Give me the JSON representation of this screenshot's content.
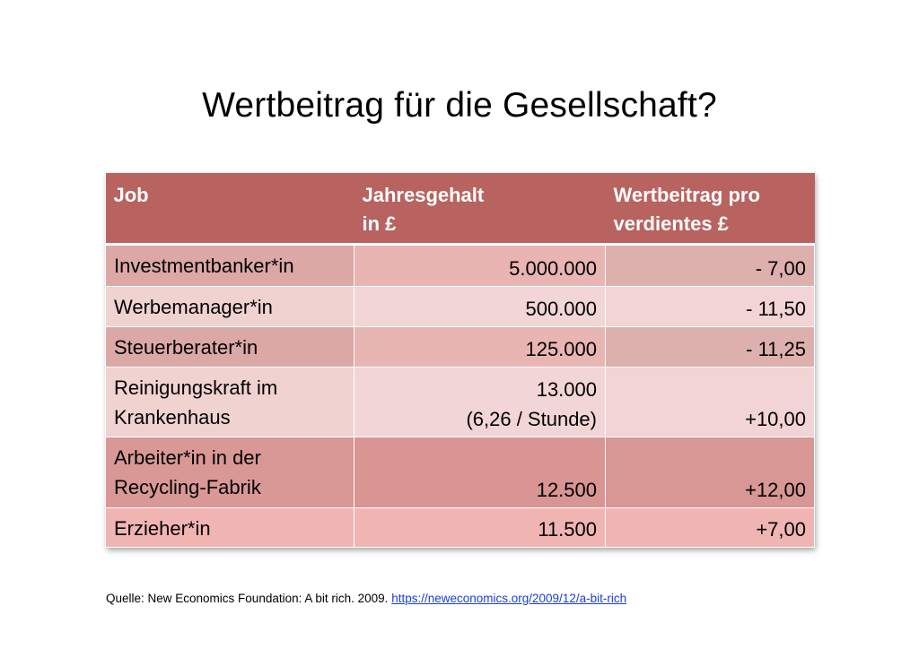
{
  "title": "Wertbeitrag für die Gesellschaft?",
  "table": {
    "headers": [
      {
        "line1": "Job",
        "line2": ""
      },
      {
        "line1": "Jahresgehalt",
        "line2": "in £"
      },
      {
        "line1": "Wertbeitrag pro",
        "line2": "verdientes £"
      }
    ],
    "rows": [
      {
        "job1": "Investmentbanker*in",
        "job2": "",
        "salary1": "",
        "salary2": "5.000.000",
        "value": "- 7,00"
      },
      {
        "job1": "Werbemanager*in",
        "job2": "",
        "salary1": "",
        "salary2": "500.000",
        "value": "- 11,50"
      },
      {
        "job1": "Steuerberater*in",
        "job2": "",
        "salary1": "",
        "salary2": "125.000",
        "value": "- 11,25"
      },
      {
        "job1": "Reinigungskraft im",
        "job2": "Krankenhaus",
        "salary1": "13.000",
        "salary2": "(6,26 / Stunde)",
        "value": "+10,00"
      },
      {
        "job1": "Arbeiter*in in der",
        "job2": "Recycling-Fabrik",
        "salary1": "",
        "salary2": "12.500",
        "value": "+12,00"
      },
      {
        "job1": "Erzieher*in",
        "job2": "",
        "salary1": "",
        "salary2": "11.500",
        "value": "+7,00"
      }
    ]
  },
  "source": {
    "text": "Quelle: New Economics Foundation: A bit rich. 2009.",
    "link": "https://neweconomics.org/2009/12/a-bit-rich"
  },
  "colors": {
    "header_bg": "#b8635f",
    "link": "#1a3ddb"
  }
}
